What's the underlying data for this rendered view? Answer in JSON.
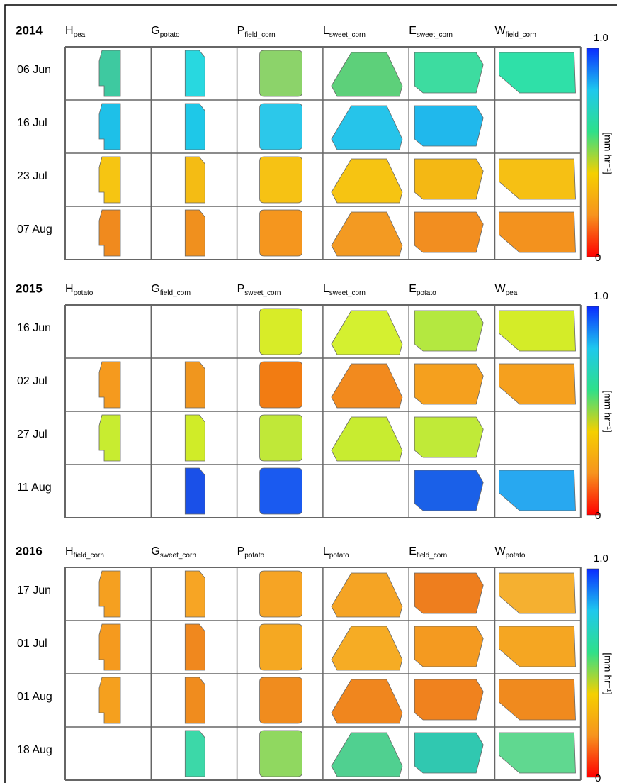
{
  "colorbar_colors": [
    "#ff0000",
    "#f7931e",
    "#f5d000",
    "#2ee08a",
    "#1ec8ee",
    "#0a2cff"
  ],
  "blocks": [
    {
      "year": "2014",
      "columns": [
        {
          "letter": "H",
          "sub": "pea"
        },
        {
          "letter": "G",
          "sub": "potato"
        },
        {
          "letter": "P",
          "sub": "field_corn"
        },
        {
          "letter": "L",
          "sub": "sweet_corn"
        },
        {
          "letter": "E",
          "sub": "sweet_corn"
        },
        {
          "letter": "W",
          "sub": "field_corn"
        }
      ],
      "rows": [
        {
          "date": "06 Jun",
          "cells": [
            "#3ec9a0",
            "#28d8e0",
            "#8cd36a",
            "#5dd07a",
            "#3ddca0",
            "#2fe0a8"
          ]
        },
        {
          "date": "16 Jul",
          "cells": [
            "#1ec0e8",
            "#1ec8e8",
            "#2cc8ea",
            "#26c4ea",
            "#20b8ec",
            null
          ]
        },
        {
          "date": "23 Jul",
          "cells": [
            "#f6c512",
            "#f4bc14",
            "#f6c214",
            "#f6c412",
            "#f4b814",
            "#f6c014"
          ]
        },
        {
          "date": "07 Aug",
          "cells": [
            "#f08a1e",
            "#f0901e",
            "#f5961e",
            "#f39a22",
            "#f28e20",
            "#f3921e"
          ]
        }
      ],
      "colorbar": {
        "max": "1.0",
        "min": "0",
        "unit": "[mm hr⁻¹]"
      }
    },
    {
      "year": "2015",
      "columns": [
        {
          "letter": "H",
          "sub": "potato"
        },
        {
          "letter": "G",
          "sub": "field_corn"
        },
        {
          "letter": "P",
          "sub": "sweet_corn"
        },
        {
          "letter": "L",
          "sub": "sweet_corn"
        },
        {
          "letter": "E",
          "sub": "potato"
        },
        {
          "letter": "W",
          "sub": "pea"
        }
      ],
      "rows": [
        {
          "date": "16 Jun",
          "cells": [
            null,
            null,
            "#d8ec28",
            "#d4f030",
            "#b4e840",
            "#d4ec28"
          ]
        },
        {
          "date": "02 Jul",
          "cells": [
            "#f59a1e",
            "#f0961e",
            "#f27c12",
            "#f28a1e",
            "#f5a01e",
            "#f5a01e"
          ]
        },
        {
          "date": "27 Jul",
          "cells": [
            "#c8ec30",
            "#d0ec28",
            "#c0e838",
            "#c8ec30",
            "#c0ea38",
            null
          ]
        },
        {
          "date": "11 Aug",
          "cells": [
            null,
            "#1a50e8",
            "#1a5af0",
            null,
            "#1a60e8",
            "#28a8f0"
          ]
        }
      ],
      "colorbar": {
        "max": "1.0",
        "min": "0",
        "unit": "[mm hr⁻¹]"
      }
    },
    {
      "year": "2016",
      "columns": [
        {
          "letter": "H",
          "sub": "field_corn"
        },
        {
          "letter": "G",
          "sub": "sweet_corn"
        },
        {
          "letter": "P",
          "sub": "potato"
        },
        {
          "letter": "L",
          "sub": "potato"
        },
        {
          "letter": "E",
          "sub": "field_corn"
        },
        {
          "letter": "W",
          "sub": "potato"
        }
      ],
      "rows": [
        {
          "date": "17 Jun",
          "cells": [
            "#f5a020",
            "#f7a524",
            "#f6a424",
            "#f5a424",
            "#ee7e1e",
            "#f5b030"
          ]
        },
        {
          "date": "01 Jul",
          "cells": [
            "#f59a1e",
            "#f0881e",
            "#f5a822",
            "#f6ac24",
            "#f49a20",
            "#f5a622"
          ]
        },
        {
          "date": "01 Aug",
          "cells": [
            "#f5a01e",
            "#f08c1e",
            "#f08c1e",
            "#f0861e",
            "#f0821e",
            "#f08a1e"
          ]
        },
        {
          "date": "18 Aug",
          "cells": [
            null,
            "#3cd8a8",
            "#90d860",
            "#50d090",
            "#30c8b0",
            "#60d890"
          ]
        }
      ],
      "colorbar": {
        "max": "1.0",
        "min": "0",
        "unit": "[mm hr⁻¹]"
      }
    }
  ]
}
